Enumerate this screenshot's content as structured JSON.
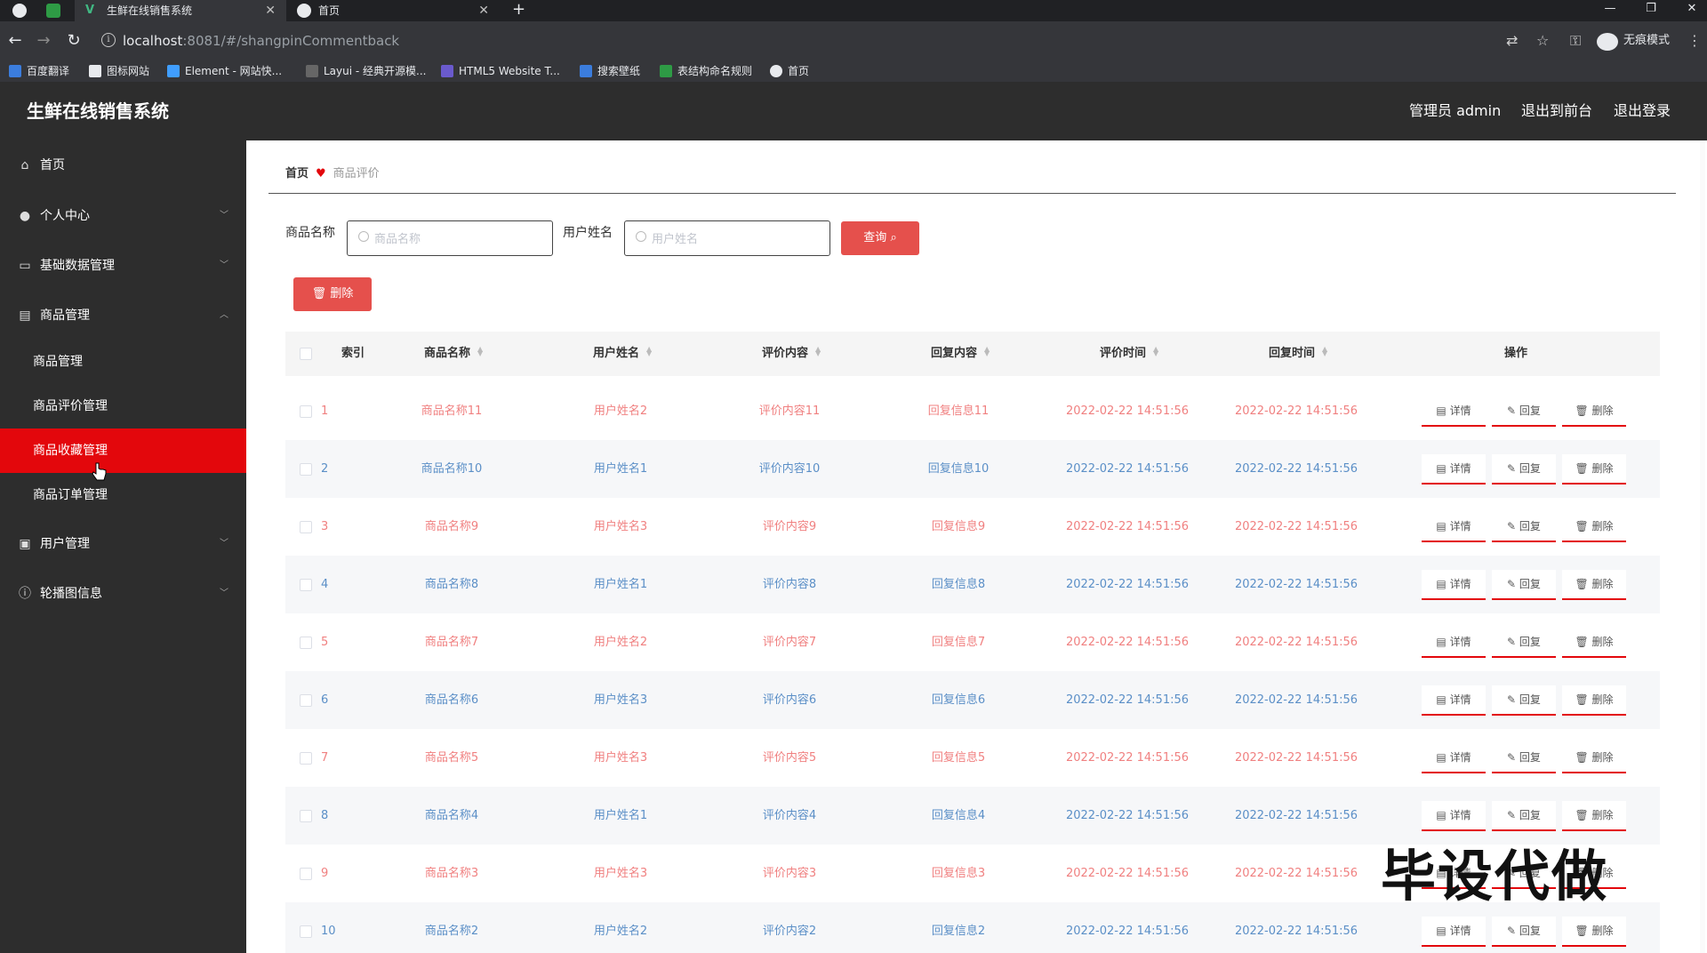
{
  "browser": {
    "tabs": [
      {
        "label": "生鲜在线销售系统",
        "active": true
      },
      {
        "label": "首页",
        "active": false
      }
    ],
    "url_host": "localhost",
    "url_path": ":8081/#/shangpinCommentback",
    "incognito_label": "无痕模式",
    "bookmarks": [
      "百度翻译",
      "图标网站",
      "Element - 网站快...",
      "Layui - 经典开源模...",
      "HTML5 Website T...",
      "搜索壁纸",
      "表结构命名规则",
      "首页"
    ]
  },
  "header": {
    "title": "生鲜在线销售系统",
    "admin_label": "管理员 admin",
    "back_front_label": "退出到前台",
    "logout_label": "退出登录"
  },
  "sidebar": {
    "items": [
      {
        "label": "首页",
        "icon": "home-icon"
      },
      {
        "label": "个人中心",
        "icon": "user-icon",
        "arrow": "down"
      },
      {
        "label": "基础数据管理",
        "icon": "chat-icon",
        "arrow": "down"
      },
      {
        "label": "商品管理",
        "icon": "box-icon",
        "arrow": "up"
      },
      {
        "label": "用户管理",
        "icon": "image-icon",
        "arrow": "down"
      },
      {
        "label": "轮播图信息",
        "icon": "info-icon",
        "arrow": "down"
      }
    ],
    "sub_items": [
      {
        "label": "商品管理",
        "active": false
      },
      {
        "label": "商品评价管理",
        "active": false
      },
      {
        "label": "商品收藏管理",
        "active": true
      },
      {
        "label": "商品订单管理",
        "active": false
      }
    ]
  },
  "breadcrumb": {
    "home": "首页",
    "current": "商品评价"
  },
  "filters": {
    "product_label": "商品名称",
    "product_placeholder": "商品名称",
    "user_label": "用户姓名",
    "user_placeholder": "用户姓名",
    "query_label": "查询",
    "delete_label": "删除"
  },
  "table": {
    "headers": [
      "索引",
      "商品名称",
      "用户姓名",
      "评价内容",
      "回复内容",
      "评价时间",
      "回复时间",
      "操作"
    ],
    "actions": {
      "detail": "详情",
      "reply": "回复",
      "delete": "删除"
    },
    "rows": [
      {
        "index": "1",
        "product": "商品名称11",
        "user": "用户姓名2",
        "comment": "评价内容11",
        "reply": "回复信息11",
        "comment_time": "2022-02-22 14:51:56",
        "reply_time": "2022-02-22 14:51:56"
      },
      {
        "index": "2",
        "product": "商品名称10",
        "user": "用户姓名1",
        "comment": "评价内容10",
        "reply": "回复信息10",
        "comment_time": "2022-02-22 14:51:56",
        "reply_time": "2022-02-22 14:51:56"
      },
      {
        "index": "3",
        "product": "商品名称9",
        "user": "用户姓名3",
        "comment": "评价内容9",
        "reply": "回复信息9",
        "comment_time": "2022-02-22 14:51:56",
        "reply_time": "2022-02-22 14:51:56"
      },
      {
        "index": "4",
        "product": "商品名称8",
        "user": "用户姓名1",
        "comment": "评价内容8",
        "reply": "回复信息8",
        "comment_time": "2022-02-22 14:51:56",
        "reply_time": "2022-02-22 14:51:56"
      },
      {
        "index": "5",
        "product": "商品名称7",
        "user": "用户姓名2",
        "comment": "评价内容7",
        "reply": "回复信息7",
        "comment_time": "2022-02-22 14:51:56",
        "reply_time": "2022-02-22 14:51:56"
      },
      {
        "index": "6",
        "product": "商品名称6",
        "user": "用户姓名3",
        "comment": "评价内容6",
        "reply": "回复信息6",
        "comment_time": "2022-02-22 14:51:56",
        "reply_time": "2022-02-22 14:51:56"
      },
      {
        "index": "7",
        "product": "商品名称5",
        "user": "用户姓名3",
        "comment": "评价内容5",
        "reply": "回复信息5",
        "comment_time": "2022-02-22 14:51:56",
        "reply_time": "2022-02-22 14:51:56"
      },
      {
        "index": "8",
        "product": "商品名称4",
        "user": "用户姓名1",
        "comment": "评价内容4",
        "reply": "回复信息4",
        "comment_time": "2022-02-22 14:51:56",
        "reply_time": "2022-02-22 14:51:56"
      },
      {
        "index": "9",
        "product": "商品名称3",
        "user": "用户姓名3",
        "comment": "评价内容3",
        "reply": "回复信息3",
        "comment_time": "2022-02-22 14:51:56",
        "reply_time": "2022-02-22 14:51:56"
      },
      {
        "index": "10",
        "product": "商品名称2",
        "user": "用户姓名2",
        "comment": "评价内容2",
        "reply": "回复信息2",
        "comment_time": "2022-02-22 14:51:56",
        "reply_time": "2022-02-22 14:51:56"
      }
    ]
  },
  "watermark": "毕设代做",
  "colors": {
    "accent_red": "#e3070c",
    "odd_row_text": "#f08080",
    "even_row_text": "#5b8fc7",
    "sidebar_bg": "#2d2d2d"
  }
}
